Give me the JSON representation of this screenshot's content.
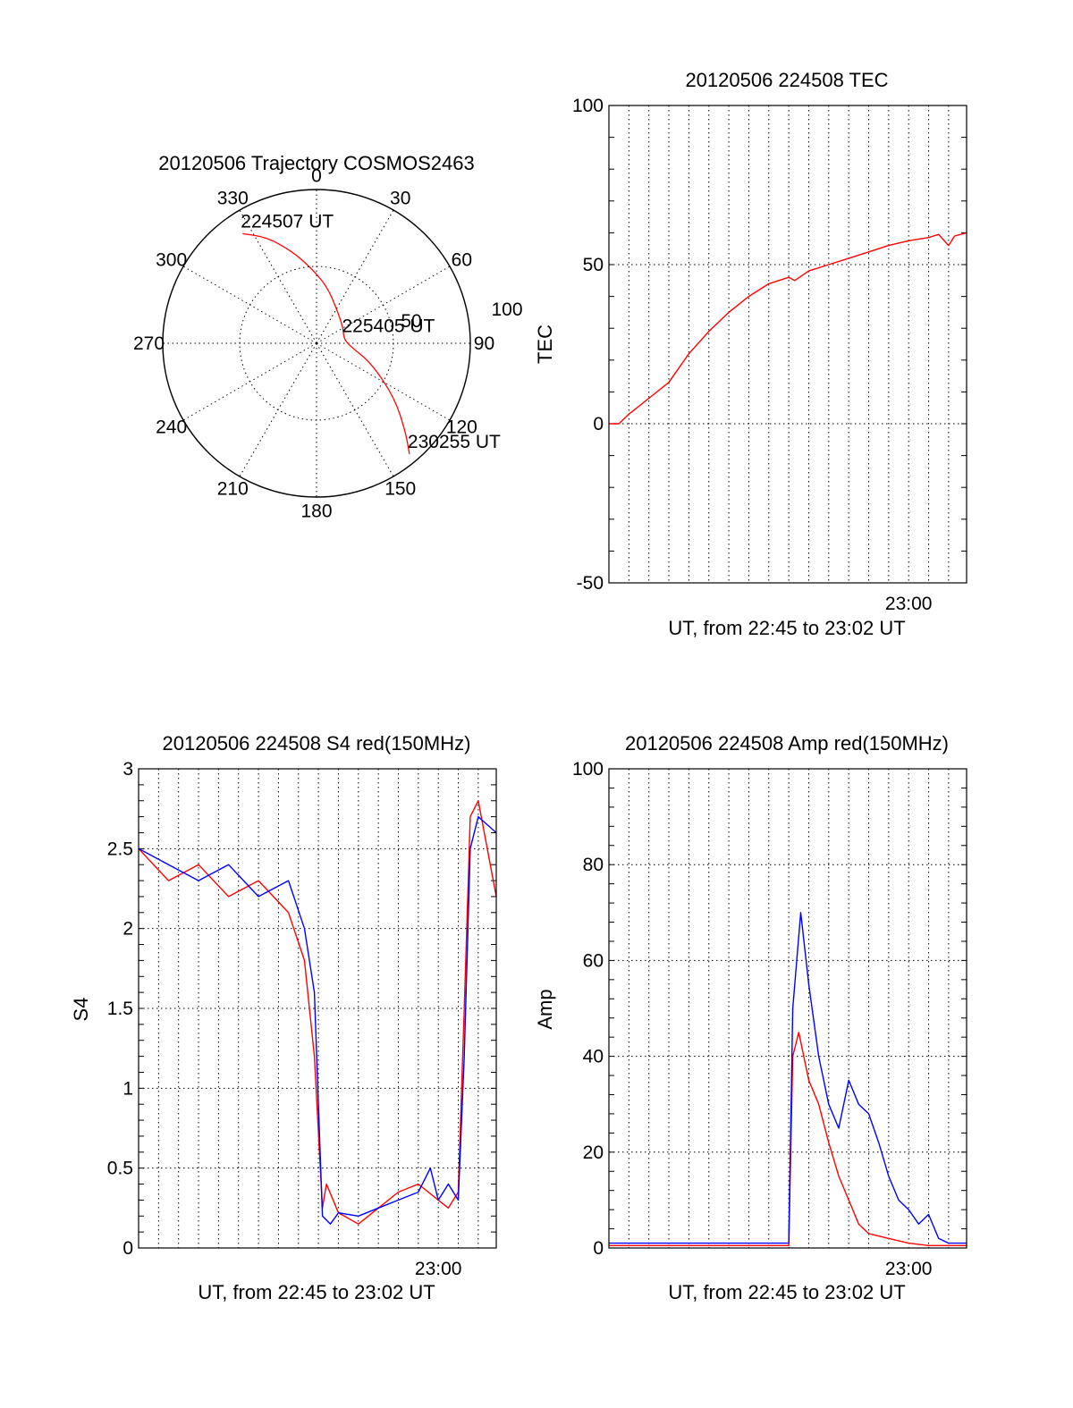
{
  "chart_data": [
    {
      "type": "polar",
      "title": "20120506 Trajectory COSMOS2463",
      "angle_labels": [
        "0",
        "30",
        "60",
        "90",
        "120",
        "150",
        "180",
        "210",
        "240",
        "270",
        "300",
        "330"
      ],
      "radius_labels": [
        "50",
        "100"
      ],
      "trajectory": [
        [
          326,
          86
        ],
        [
          335,
          76
        ],
        [
          345,
          62
        ],
        [
          355,
          50
        ],
        [
          10,
          38
        ],
        [
          30,
          26
        ],
        [
          60,
          20
        ],
        [
          80,
          18
        ],
        [
          95,
          22
        ],
        [
          110,
          38
        ],
        [
          125,
          62
        ],
        [
          135,
          82
        ],
        [
          140,
          94
        ]
      ],
      "annotations": [
        {
          "text": "224507 UT",
          "az": 326,
          "r": 86
        },
        {
          "text": "225405 UT",
          "az": 80,
          "r": 18
        },
        {
          "text": "230255 UT",
          "az": 140,
          "r": 94
        }
      ],
      "colors": {
        "trajectory": "#ff0000"
      }
    },
    {
      "type": "line",
      "title": "20120506 224508 TEC",
      "xlabel": "UT, from 22:45 to 23:02 UT",
      "ylabel": "TEC",
      "xlim": [
        0,
        17.9
      ],
      "ylim": [
        -50,
        100
      ],
      "xtick_values": [
        15
      ],
      "xtick_labels": [
        "23:00"
      ],
      "ytick_values": [
        -50,
        0,
        50,
        100
      ],
      "ytick_labels": [
        "-50",
        "0",
        "50",
        "100"
      ],
      "series": [
        {
          "color": "#ff0000",
          "x": [
            0,
            0.5,
            1,
            2,
            3,
            4,
            5,
            6,
            7,
            8,
            9,
            9.3,
            10,
            11,
            12,
            13,
            14,
            15,
            16,
            16.5,
            17,
            17.3,
            17.9
          ],
          "y": [
            0,
            0,
            3,
            8,
            13,
            22,
            29,
            35,
            40,
            44,
            46,
            45,
            48,
            50,
            52,
            54,
            56,
            57.5,
            58.5,
            59.5,
            56,
            59,
            60
          ]
        }
      ]
    },
    {
      "type": "line",
      "title": "20120506 224508 S4 red(150MHz)",
      "xlabel": "UT, from 22:45 to 23:02 UT",
      "ylabel": "S4",
      "xlim": [
        0,
        17.9
      ],
      "ylim": [
        0,
        3
      ],
      "xtick_values": [
        15
      ],
      "xtick_labels": [
        "23:00"
      ],
      "ytick_values": [
        0,
        0.5,
        1,
        1.5,
        2,
        2.5,
        3
      ],
      "ytick_labels": [
        "0",
        "0.5",
        "1",
        "1.5",
        "2",
        "2.5",
        "3"
      ],
      "series": [
        {
          "color": "#ff0000",
          "x": [
            0,
            1.5,
            3,
            4.5,
            6,
            7.5,
            8.3,
            8.8,
            9.2,
            9.4,
            10,
            11,
            12,
            13,
            14,
            15,
            15.5,
            16,
            16.3,
            16.6,
            17,
            17.9
          ],
          "y": [
            2.5,
            2.3,
            2.4,
            2.2,
            2.3,
            2.1,
            1.8,
            1.2,
            0.25,
            0.4,
            0.22,
            0.15,
            0.25,
            0.35,
            0.4,
            0.3,
            0.25,
            0.35,
            1.5,
            2.7,
            2.8,
            2.2
          ]
        },
        {
          "color": "#0000ff",
          "x": [
            0,
            1.5,
            3,
            4.5,
            6,
            7.5,
            8.3,
            8.8,
            9.2,
            9.6,
            10,
            11,
            12,
            13,
            14,
            14.6,
            15,
            15.5,
            16,
            16.3,
            16.6,
            17,
            17.9
          ],
          "y": [
            2.5,
            2.4,
            2.3,
            2.4,
            2.2,
            2.3,
            2.0,
            1.6,
            0.2,
            0.15,
            0.22,
            0.2,
            0.25,
            0.3,
            0.35,
            0.5,
            0.3,
            0.4,
            0.3,
            1.2,
            2.5,
            2.7,
            2.6
          ]
        }
      ]
    },
    {
      "type": "line",
      "title": "20120506 224508 Amp red(150MHz)",
      "xlabel": "UT, from 22:45 to 23:02 UT",
      "ylabel": "Amp",
      "xlim": [
        0,
        17.9
      ],
      "ylim": [
        0,
        100
      ],
      "xtick_values": [
        15
      ],
      "xtick_labels": [
        "23:00"
      ],
      "ytick_values": [
        0,
        20,
        40,
        60,
        80,
        100
      ],
      "ytick_labels": [
        "0",
        "20",
        "40",
        "60",
        "80",
        "100"
      ],
      "series": [
        {
          "color": "#ff0000",
          "x": [
            0,
            9,
            9.2,
            9.5,
            10,
            10.5,
            11,
            11.5,
            12,
            12.5,
            13,
            14,
            15,
            16,
            17,
            17.9
          ],
          "y": [
            0.5,
            0.5,
            40,
            45,
            35,
            30,
            22,
            15,
            10,
            5,
            3,
            2,
            1,
            0.5,
            0.5,
            0.5
          ]
        },
        {
          "color": "#0000ff",
          "x": [
            0,
            9,
            9.2,
            9.6,
            10,
            10.5,
            11,
            11.5,
            12,
            12.5,
            13,
            13.5,
            14,
            14.5,
            15,
            15.5,
            16,
            16.5,
            17,
            17.9
          ],
          "y": [
            1,
            1,
            50,
            70,
            55,
            40,
            30,
            25,
            35,
            30,
            28,
            22,
            15,
            10,
            8,
            5,
            7,
            2,
            1,
            1
          ]
        }
      ]
    }
  ]
}
